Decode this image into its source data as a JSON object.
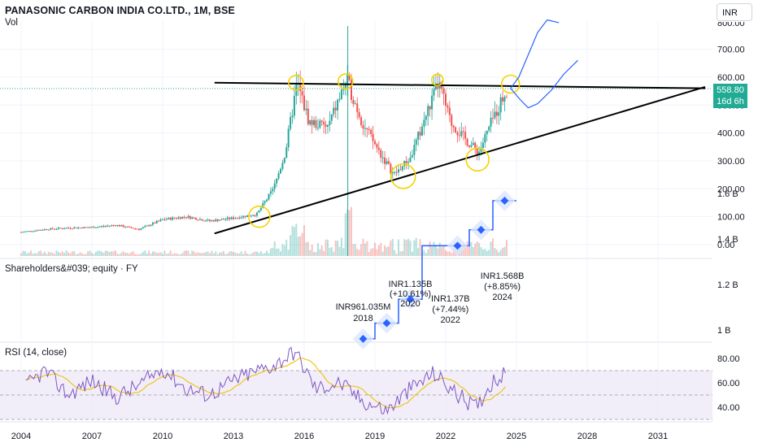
{
  "header": {
    "title": "PANASONIC CARBON INDIA CO.LTD., 1M, BSE",
    "volume_label": "Vol",
    "currency": "INR"
  },
  "price_tag": {
    "price": "558.80",
    "countdown": "16d 6h",
    "color": "#22ab94"
  },
  "colors": {
    "up": "#26a69a",
    "down": "#ef5350",
    "trendline": "#000000",
    "circle": "#f5d300",
    "projection": "#2962ff",
    "fundamental": "#2962ff",
    "rsi": "#7e57c2",
    "rsi_ma": "#f0c419",
    "rsi_band": "#ede7f6"
  },
  "panes": {
    "fundamental_label": "Shareholders&#039; equity · FY",
    "rsi_label": "RSI (14, close)"
  },
  "chart_data": [
    {
      "type": "candlestick",
      "title": "PANASONIC CARBON INDIA CO.LTD., 1M, BSE",
      "x_ticks": [
        "2004",
        "2007",
        "2010",
        "2013",
        "2016",
        "2019",
        "2022",
        "2025",
        "2028",
        "2031"
      ],
      "y_ticks": [
        "0.00",
        "100.00",
        "200.00",
        "300.00",
        "400.00",
        "500.00",
        "600.00",
        "700.00"
      ],
      "ylim": [
        0,
        800
      ],
      "last_price": 558.8,
      "series_close_approx": [
        {
          "year": 2004.0,
          "close": 45
        },
        {
          "year": 2005.0,
          "close": 55
        },
        {
          "year": 2006.0,
          "close": 60
        },
        {
          "year": 2007.0,
          "close": 62
        },
        {
          "year": 2008.0,
          "close": 70
        },
        {
          "year": 2009.0,
          "close": 55
        },
        {
          "year": 2010.0,
          "close": 90
        },
        {
          "year": 2011.0,
          "close": 100
        },
        {
          "year": 2012.0,
          "close": 85
        },
        {
          "year": 2013.0,
          "close": 95
        },
        {
          "year": 2014.0,
          "close": 110
        },
        {
          "year": 2014.7,
          "close": 200
        },
        {
          "year": 2015.2,
          "close": 330
        },
        {
          "year": 2015.7,
          "close": 580
        },
        {
          "year": 2016.2,
          "close": 440
        },
        {
          "year": 2017.0,
          "close": 420
        },
        {
          "year": 2017.8,
          "close": 590
        },
        {
          "year": 2018.5,
          "close": 430
        },
        {
          "year": 2019.2,
          "close": 330
        },
        {
          "year": 2019.8,
          "close": 250
        },
        {
          "year": 2020.5,
          "close": 310
        },
        {
          "year": 2021.2,
          "close": 470
        },
        {
          "year": 2021.7,
          "close": 580
        },
        {
          "year": 2022.2,
          "close": 440
        },
        {
          "year": 2022.8,
          "close": 380
        },
        {
          "year": 2023.4,
          "close": 330
        },
        {
          "year": 2024.0,
          "close": 450
        },
        {
          "year": 2024.6,
          "close": 558.8
        }
      ],
      "resistance_line": {
        "start": {
          "year": 2012.2,
          "price": 580
        },
        "end": {
          "year": 2033.0,
          "price": 560
        }
      },
      "support_line": {
        "start": {
          "year": 2012.2,
          "price": 40
        },
        "end": {
          "year": 2033.0,
          "price": 565
        }
      }
    },
    {
      "type": "step",
      "title": "Shareholders&#039; equity · FY",
      "y_ticks": [
        "1 B",
        "1.2 B",
        "1.4 B",
        "1.6 B"
      ],
      "ylim": [
        0.95,
        1.65
      ],
      "points": [
        {
          "label": "INR961.035M",
          "year": "2018",
          "value": 0.961
        },
        {
          "label": "",
          "year": "2019",
          "value": 1.03
        },
        {
          "label": "INR1.135B",
          "change": "(+10.61%)",
          "year": "2020",
          "value": 1.135
        },
        {
          "label": "INR1.37B",
          "change": "(+7.44%)",
          "year": "2022",
          "value": 1.37
        },
        {
          "label": "",
          "year": "2023",
          "value": 1.44
        },
        {
          "label": "INR1.568B",
          "change": "(+8.85%)",
          "year": "2024",
          "value": 1.568
        }
      ]
    },
    {
      "type": "line",
      "title": "RSI (14, close)",
      "y_ticks": [
        "40.00",
        "60.00",
        "80.00"
      ],
      "ylim": [
        28,
        90
      ],
      "bands": [
        30,
        50,
        70
      ],
      "rsi_approx": [
        {
          "year": 2004.2,
          "value": 57
        },
        {
          "year": 2005.0,
          "value": 70
        },
        {
          "year": 2006.0,
          "value": 50
        },
        {
          "year": 2007.0,
          "value": 62
        },
        {
          "year": 2008.0,
          "value": 48
        },
        {
          "year": 2009.0,
          "value": 58
        },
        {
          "year": 2010.0,
          "value": 72
        },
        {
          "year": 2011.0,
          "value": 55
        },
        {
          "year": 2012.0,
          "value": 50
        },
        {
          "year": 2013.0,
          "value": 62
        },
        {
          "year": 2014.0,
          "value": 70
        },
        {
          "year": 2014.8,
          "value": 75
        },
        {
          "year": 2015.6,
          "value": 86
        },
        {
          "year": 2016.5,
          "value": 55
        },
        {
          "year": 2017.5,
          "value": 60
        },
        {
          "year": 2018.5,
          "value": 45
        },
        {
          "year": 2019.5,
          "value": 37
        },
        {
          "year": 2020.5,
          "value": 55
        },
        {
          "year": 2021.5,
          "value": 68
        },
        {
          "year": 2022.5,
          "value": 50
        },
        {
          "year": 2023.3,
          "value": 40
        },
        {
          "year": 2024.0,
          "value": 62
        },
        {
          "year": 2024.6,
          "value": 67
        }
      ]
    }
  ]
}
